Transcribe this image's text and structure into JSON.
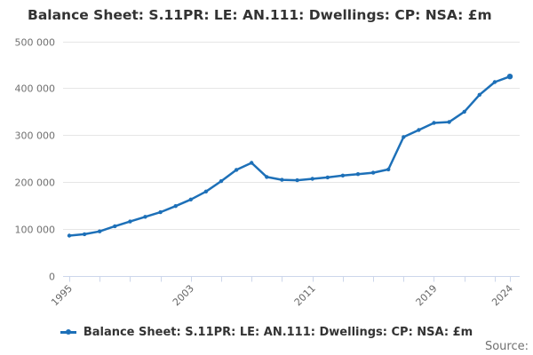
{
  "title": "Balance Sheet: S.11PR: LE: AN.111: Dwellings: CP: NSA: £m",
  "legend": {
    "label": "Balance Sheet: S.11PR: LE: AN.111: Dwellings: CP: NSA: £m"
  },
  "source": {
    "label": "Source:"
  },
  "colors": {
    "series_blue": "#1d70b8",
    "title_text": "#333333",
    "axis_label_text": "#707070",
    "x_label_text": "#666666",
    "grid_line": "#e6e6e6",
    "axis_line": "#ccd6eb",
    "background": "#ffffff"
  },
  "chart_data": {
    "type": "line",
    "title": "Balance Sheet: S.11PR: LE: AN.111: Dwellings: CP: NSA: £m",
    "xlabel": "",
    "ylabel": "",
    "x": [
      1995,
      1996,
      1997,
      1998,
      1999,
      2000,
      2001,
      2002,
      2003,
      2004,
      2005,
      2006,
      2007,
      2008,
      2009,
      2010,
      2011,
      2012,
      2013,
      2014,
      2015,
      2016,
      2017,
      2018,
      2019,
      2020,
      2021,
      2022,
      2023,
      2024
    ],
    "series": [
      {
        "name": "Balance Sheet: S.11PR: LE: AN.111: Dwellings: CP: NSA: £m",
        "values": [
          86000,
          89000,
          95000,
          106000,
          116000,
          126000,
          136000,
          149000,
          163000,
          180000,
          202000,
          226000,
          241000,
          211000,
          205000,
          204000,
          207000,
          210000,
          214000,
          217000,
          220000,
          227000,
          296000,
          311000,
          326000,
          328000,
          350000,
          386000,
          413000,
          425000
        ]
      }
    ],
    "xlim": [
      1995,
      2024
    ],
    "ylim": [
      0,
      500000
    ],
    "y_tick_values": [
      0,
      100000,
      200000,
      300000,
      400000,
      500000
    ],
    "y_tick_labels": [
      "0",
      "100 000",
      "200 000",
      "300 000",
      "400 000",
      "500 000"
    ],
    "x_tick_label_years": [
      1995,
      2003,
      2011,
      2019,
      2024
    ],
    "x_minor_tick_step_years": 2,
    "grid": "horizontal-only",
    "legend_position": "bottom-center",
    "marker": "dot-every-point"
  }
}
